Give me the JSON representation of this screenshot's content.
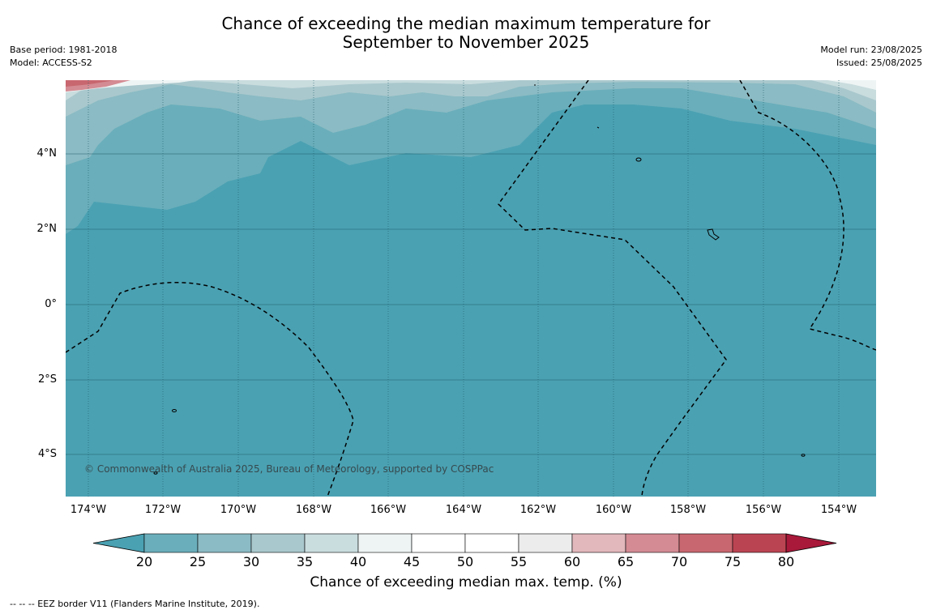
{
  "title_line1": "Chance of exceeding the median maximum temperature for",
  "title_line2": "September to November 2025",
  "meta_left": [
    "Base period: 1981-2018",
    "Model: ACCESS-S2"
  ],
  "meta_right": [
    "Model run: 23/08/2025",
    "Issued: 25/08/2025"
  ],
  "lat_ticks": [
    "4°N",
    "2°N",
    "0°",
    "2°S",
    "4°S"
  ],
  "lon_ticks": [
    "174°W",
    "172°W",
    "170°W",
    "168°W",
    "166°W",
    "164°W",
    "162°W",
    "160°W",
    "158°W",
    "156°W",
    "154°W"
  ],
  "copyright": "© Commonwealth of Australia 2025, Bureau of Meteorology, supported by COSPPac",
  "colorbar": {
    "ticks": [
      "20",
      "25",
      "30",
      "35",
      "40",
      "45",
      "50",
      "55",
      "60",
      "65",
      "70",
      "75",
      "80"
    ],
    "colors": [
      "#4aa1b2",
      "#6aaebb",
      "#8bbbc4",
      "#a9c8cd",
      "#c9dcde",
      "#eef4f4",
      "#ffffff",
      "#ffffff",
      "#ececec",
      "#e2b8bc",
      "#d48b93",
      "#c8676f",
      "#bb4452",
      "#a8193a"
    ],
    "title": "Chance of exceeding median max. temp. (%)"
  },
  "footnote": "--  --  -- EEZ border V11 (Flanders Marine Institute, 2019).",
  "colors": {
    "ocean": "#4aa1b2",
    "eez_line": "#000000"
  }
}
